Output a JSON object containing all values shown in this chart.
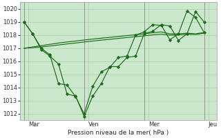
{
  "fig_bg": "#ffffff",
  "plot_bg": "#cce8cc",
  "grid_color": "#aaccaa",
  "line_color": "#1a6b1a",
  "ylabel": "Pression niveau de la mer( hPa )",
  "ylim": [
    1011.5,
    1020.5
  ],
  "yticks": [
    1012,
    1013,
    1014,
    1015,
    1016,
    1017,
    1018,
    1019,
    1020
  ],
  "day_labels": [
    "Mar",
    "Ven",
    "Mer",
    "Jeu"
  ],
  "vline_x": [
    0,
    7,
    14,
    21
  ],
  "xlim": [
    -0.5,
    22.5
  ],
  "n_points": 22,
  "line1_y": [
    1019.0,
    1018.1,
    1016.9,
    1016.4,
    1015.8,
    1013.5,
    1013.35,
    1011.8,
    1013.35,
    1014.3,
    1015.6,
    1015.6,
    1016.3,
    1016.4,
    1018.1,
    1018.3,
    1018.8,
    1018.7,
    1017.6,
    1018.1,
    1019.8,
    1019.0
  ],
  "line2_y": [
    1019.0,
    1018.1,
    1017.0,
    1016.5,
    1014.3,
    1014.2,
    1013.3,
    1012.0,
    1014.1,
    1015.2,
    1015.55,
    1016.3,
    1016.4,
    1018.0,
    1018.25,
    1018.8,
    1018.75,
    1017.65,
    1018.1,
    1019.85,
    1019.35,
    1018.2
  ],
  "line3_y": [
    1017.0,
    1017.1,
    1017.2,
    1017.3,
    1017.4,
    1017.48,
    1017.55,
    1017.63,
    1017.7,
    1017.77,
    1017.83,
    1017.9,
    1017.97,
    1018.03,
    1018.1,
    1018.18,
    1018.25,
    1018.1,
    1018.1,
    1018.15,
    1018.1,
    1018.2
  ],
  "line4_y": [
    1017.0,
    1017.05,
    1017.1,
    1017.17,
    1017.25,
    1017.33,
    1017.4,
    1017.48,
    1017.55,
    1017.62,
    1017.68,
    1017.75,
    1017.82,
    1017.88,
    1017.95,
    1018.02,
    1018.08,
    1018.0,
    1018.02,
    1018.07,
    1018.05,
    1018.15
  ]
}
